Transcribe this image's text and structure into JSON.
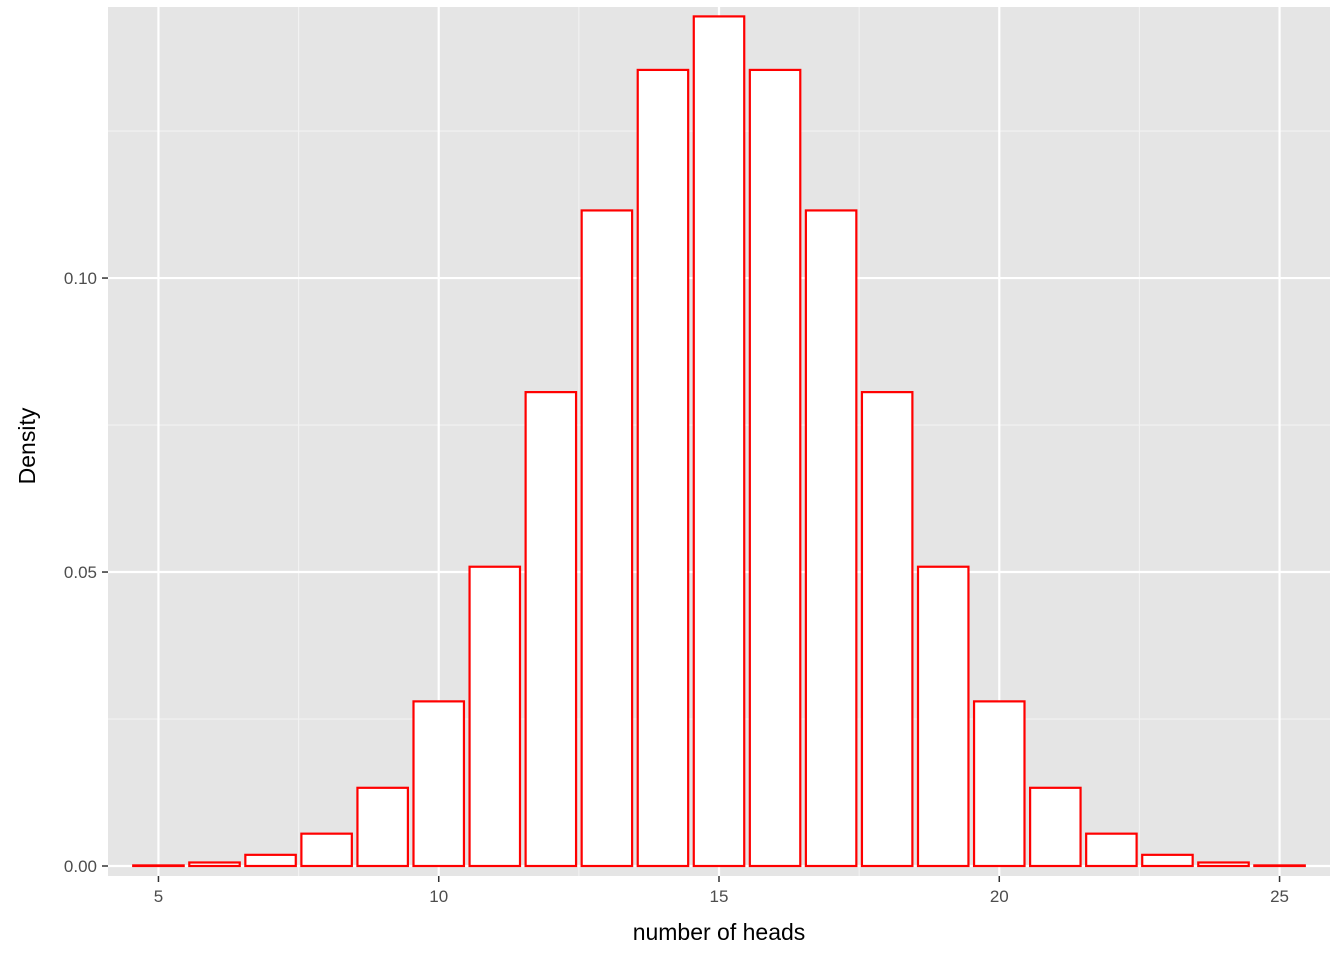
{
  "chart_data": {
    "type": "bar",
    "xlabel": "number of heads",
    "ylabel": "Density",
    "x": [
      5,
      6,
      7,
      8,
      9,
      10,
      11,
      12,
      13,
      14,
      15,
      16,
      17,
      18,
      19,
      20,
      21,
      22,
      23,
      24,
      25
    ],
    "values": [
      0.0001,
      0.0006,
      0.0019,
      0.0055,
      0.0133,
      0.028,
      0.0509,
      0.0806,
      0.1115,
      0.1354,
      0.1445,
      0.1354,
      0.1115,
      0.0806,
      0.0509,
      0.028,
      0.0133,
      0.0055,
      0.0019,
      0.0006,
      0.0001
    ],
    "xlim": [
      4.1,
      25.9
    ],
    "ylim": [
      -0.0017,
      0.1461
    ],
    "x_ticks": [
      5,
      10,
      15,
      20,
      25
    ],
    "x_tick_labels": [
      "5",
      "10",
      "15",
      "20",
      "25"
    ],
    "y_ticks": [
      0.0,
      0.05,
      0.1
    ],
    "y_tick_labels": [
      "0.00",
      "0.05",
      "0.10"
    ],
    "bar_fill": "#ffffff",
    "bar_stroke": "#ff0000",
    "panel_background": "#e5e5e5",
    "grid": true
  }
}
